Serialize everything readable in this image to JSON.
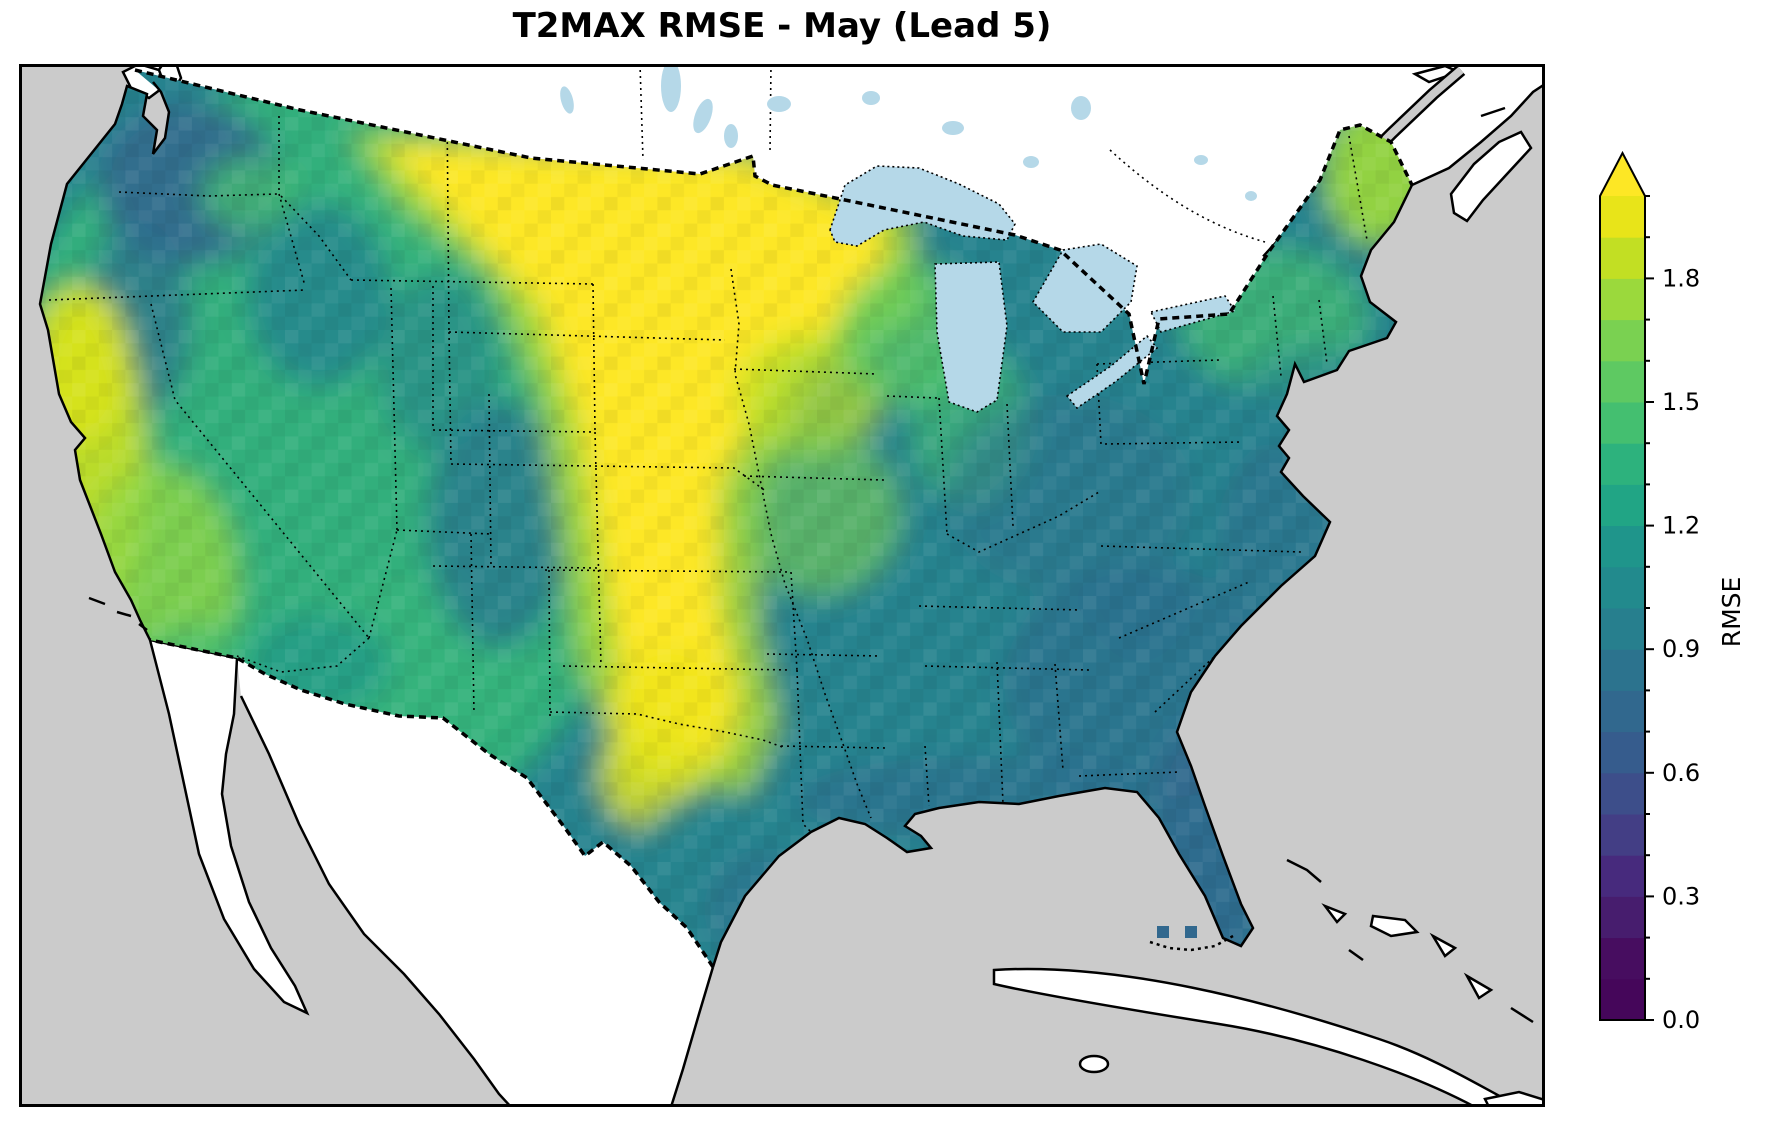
{
  "title": "T2MAX RMSE - May (Lead 5)",
  "colorbar": {
    "label": "RMSE",
    "min": 0.0,
    "max": 2.0,
    "extend": "max",
    "segment_step": 0.1,
    "minor_tick_step": 0.1,
    "tick_values": [
      0.0,
      0.3,
      0.6,
      0.9,
      1.2,
      1.5,
      1.8
    ],
    "tick_labels": [
      "0.0",
      "0.3",
      "0.6",
      "0.9",
      "1.2",
      "1.5",
      "1.8"
    ],
    "segment_colors": [
      "#45065a",
      "#470d60",
      "#471d6e",
      "#472a7d",
      "#433e85",
      "#3d4e8a",
      "#365c8d",
      "#31688e",
      "#2c738e",
      "#277f8e",
      "#228a8d",
      "#1f958b",
      "#21a585",
      "#2db27d",
      "#44bf70",
      "#5ec962",
      "#7ad151",
      "#9bd93c",
      "#c2df23",
      "#e8e419"
    ],
    "arrow_color": "#fde725",
    "colormap": "viridis"
  },
  "map_colors": {
    "ocean": "#cbcbcb",
    "land_outside_domain": "#ffffff",
    "lakes": "#b5d8e8",
    "coastline": "#000000",
    "no_data_coastal_cell": "#31688e"
  },
  "chart_data": {
    "type": "heatmap",
    "title": "T2MAX RMSE - May (Lead 5)",
    "variable": "T2MAX",
    "metric": "RMSE",
    "month": "May",
    "lead": 5,
    "colorbar_label": "RMSE",
    "value_range": [
      0.0,
      2.0
    ],
    "extend": "max",
    "colormap": "viridis",
    "tick_values": [
      0.0,
      0.3,
      0.6,
      0.9,
      1.2,
      1.5,
      1.8
    ],
    "geography": "Contiguous United States gridded field; surrounding Canada/Mexico/ocean masked",
    "regions": [
      {
        "region": "Northern Plains (MT/ND/SD/NE/KS, W MN)",
        "rmse_approx": "1.9-2.0+"
      },
      {
        "region": "Southern Plains (OK, N TX panhandle)",
        "rmse_approx": "1.7-2.0"
      },
      {
        "region": "Upper Midwest (WI, MI)",
        "rmse_approx": "1.3-1.6"
      },
      {
        "region": "Corn Belt (IA, MO, IL)",
        "rmse_approx": "1.3-1.7"
      },
      {
        "region": "Ohio Valley / Mid-Atlantic",
        "rmse_approx": "1.0-1.3"
      },
      {
        "region": "Southeast (GA, SC, AL, MS)",
        "rmse_approx": "0.8-1.1"
      },
      {
        "region": "Florida and Gulf Coast",
        "rmse_approx": "0.6-0.9"
      },
      {
        "region": "Northeast (NY, New England)",
        "rmse_approx": "1.1-1.5"
      },
      {
        "region": "Northern Maine",
        "rmse_approx": "1.5-1.8"
      },
      {
        "region": "Pacific Northwest coast / Puget Sound",
        "rmse_approx": "0.5-0.9"
      },
      {
        "region": "Interior West (NV, UT, AZ, NM)",
        "rmse_approx": "1.2-1.5"
      },
      {
        "region": "California coast and Central Valley",
        "rmse_approx": "1.4-1.9"
      },
      {
        "region": "Rockies (ID, W MT, CO)",
        "rmse_approx": "0.9-1.2"
      },
      {
        "region": "Texas interior",
        "rmse_approx": "1.2-1.6"
      }
    ]
  }
}
